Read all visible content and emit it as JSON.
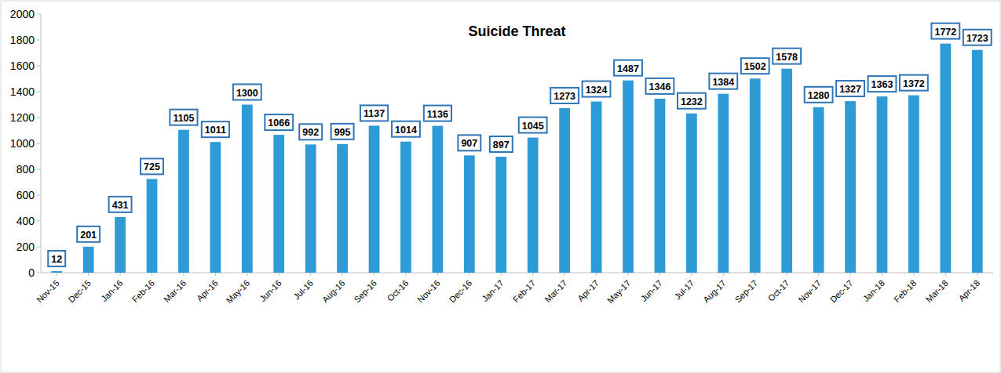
{
  "chart_data": {
    "type": "bar",
    "title": "Suicide Threat",
    "categories": [
      "Nov-15",
      "Dec-15",
      "Jan-16",
      "Feb-16",
      "Mar-16",
      "Apr-16",
      "May-16",
      "Jun-16",
      "Jul-16",
      "Aug-16",
      "Sep-16",
      "Oct-16",
      "Nov-16",
      "Dec-16",
      "Jan-17",
      "Feb-17",
      "Mar-17",
      "Apr-17",
      "May-17",
      "Jun-17",
      "Jul-17",
      "Aug-17",
      "Sep-17",
      "Oct-17",
      "Nov-17",
      "Dec-17",
      "Jan-18",
      "Feb-18",
      "Mar-18",
      "Apr-18"
    ],
    "values": [
      12,
      201,
      431,
      725,
      1105,
      1011,
      1300,
      1066,
      992,
      995,
      1137,
      1014,
      1136,
      907,
      897,
      1045,
      1273,
      1324,
      1487,
      1346,
      1232,
      1384,
      1502,
      1578,
      1280,
      1327,
      1363,
      1372,
      1772,
      1723
    ],
    "color": "#2e9ad6",
    "ylim": [
      0,
      2000
    ],
    "yticks": [
      0,
      200,
      400,
      600,
      800,
      1000,
      1200,
      1400,
      1600,
      1800,
      2000
    ],
    "grid": false,
    "data_labels": true
  }
}
